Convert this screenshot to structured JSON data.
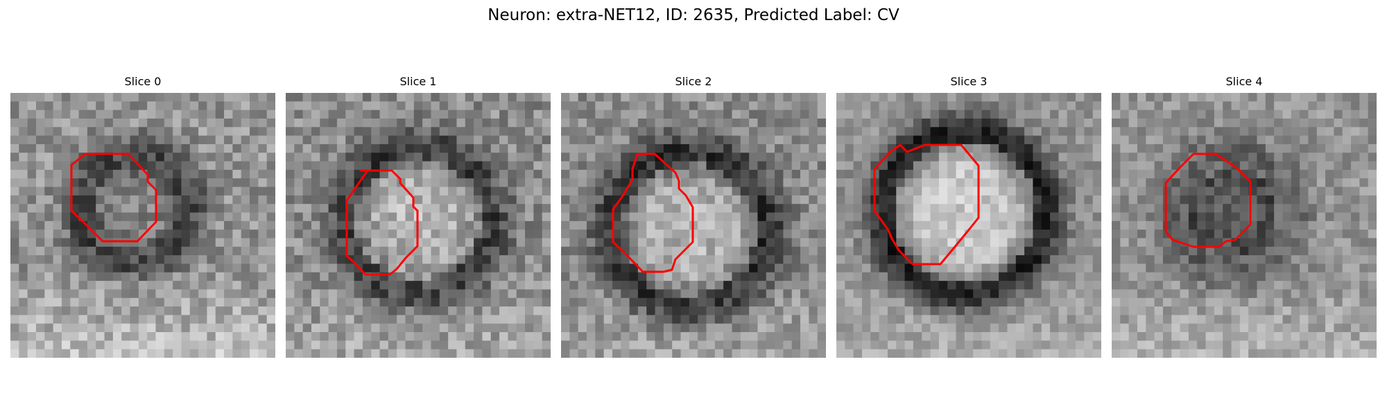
{
  "figure": {
    "title": "Neuron: extra-NET12, ID: 2635, Predicted Label: CV"
  },
  "panels": [
    {
      "title": "Slice 0"
    },
    {
      "title": "Slice 1"
    },
    {
      "title": "Slice 2"
    },
    {
      "title": "Slice 3"
    },
    {
      "title": "Slice 4"
    }
  ],
  "colors": {
    "contour": "#ff0000",
    "colormap": "gray"
  }
}
